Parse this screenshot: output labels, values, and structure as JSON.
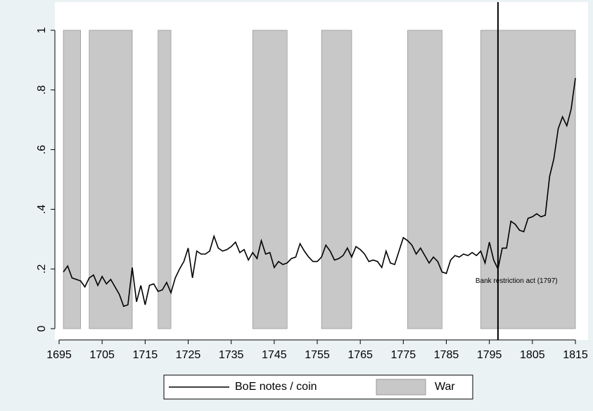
{
  "chart_data": {
    "type": "line",
    "x": [
      1696,
      1697,
      1698,
      1699,
      1700,
      1701,
      1702,
      1703,
      1704,
      1705,
      1706,
      1707,
      1708,
      1709,
      1710,
      1711,
      1712,
      1713,
      1714,
      1715,
      1716,
      1717,
      1718,
      1719,
      1720,
      1721,
      1722,
      1723,
      1724,
      1725,
      1726,
      1727,
      1728,
      1729,
      1730,
      1731,
      1732,
      1733,
      1734,
      1735,
      1736,
      1737,
      1738,
      1739,
      1740,
      1741,
      1742,
      1743,
      1744,
      1745,
      1746,
      1747,
      1748,
      1749,
      1750,
      1751,
      1752,
      1753,
      1754,
      1755,
      1756,
      1757,
      1758,
      1759,
      1760,
      1761,
      1762,
      1763,
      1764,
      1765,
      1766,
      1767,
      1768,
      1769,
      1770,
      1771,
      1772,
      1773,
      1774,
      1775,
      1776,
      1777,
      1778,
      1779,
      1780,
      1781,
      1782,
      1783,
      1784,
      1785,
      1786,
      1787,
      1788,
      1789,
      1790,
      1791,
      1792,
      1793,
      1794,
      1795,
      1796,
      1797,
      1798,
      1799,
      1800,
      1801,
      1802,
      1803,
      1804,
      1805,
      1806,
      1807,
      1808,
      1809,
      1810,
      1811,
      1812,
      1813,
      1814,
      1815
    ],
    "series": [
      {
        "name": "BoE notes / coin",
        "color": "#000000",
        "values": [
          0.19,
          0.21,
          0.17,
          0.165,
          0.16,
          0.14,
          0.17,
          0.18,
          0.145,
          0.175,
          0.15,
          0.165,
          0.14,
          0.115,
          0.075,
          0.08,
          0.205,
          0.09,
          0.145,
          0.08,
          0.145,
          0.15,
          0.125,
          0.13,
          0.155,
          0.12,
          0.17,
          0.2,
          0.225,
          0.27,
          0.17,
          0.26,
          0.25,
          0.25,
          0.26,
          0.31,
          0.27,
          0.26,
          0.265,
          0.275,
          0.29,
          0.255,
          0.265,
          0.23,
          0.255,
          0.235,
          0.295,
          0.25,
          0.255,
          0.205,
          0.225,
          0.215,
          0.22,
          0.235,
          0.24,
          0.285,
          0.26,
          0.24,
          0.225,
          0.225,
          0.24,
          0.28,
          0.26,
          0.23,
          0.235,
          0.245,
          0.27,
          0.24,
          0.275,
          0.265,
          0.25,
          0.225,
          0.23,
          0.225,
          0.205,
          0.26,
          0.22,
          0.215,
          0.26,
          0.305,
          0.295,
          0.28,
          0.25,
          0.27,
          0.245,
          0.22,
          0.24,
          0.225,
          0.19,
          0.185,
          0.23,
          0.245,
          0.24,
          0.25,
          0.245,
          0.255,
          0.245,
          0.26,
          0.22,
          0.29,
          0.23,
          0.2,
          0.27,
          0.27,
          0.36,
          0.35,
          0.33,
          0.325,
          0.37,
          0.375,
          0.385,
          0.375,
          0.38,
          0.51,
          0.57,
          0.67,
          0.71,
          0.68,
          0.735,
          0.84
        ]
      }
    ],
    "war": {
      "name": "War",
      "color": "#c8c8c8",
      "top": 1,
      "periods": [
        {
          "start": 1696,
          "end": 1700
        },
        {
          "start": 1702,
          "end": 1712
        },
        {
          "start": 1718,
          "end": 1721
        },
        {
          "start": 1740,
          "end": 1748
        },
        {
          "start": 1756,
          "end": 1763
        },
        {
          "start": 1776,
          "end": 1784
        },
        {
          "start": 1793,
          "end": 1815
        }
      ]
    },
    "vline": {
      "x": 1797,
      "label": "Bank restriction act (1797)",
      "label_y": 0.16
    },
    "xlim": [
      1695,
      1815
    ],
    "xticks": [
      1695,
      1705,
      1715,
      1725,
      1735,
      1745,
      1755,
      1765,
      1775,
      1785,
      1795,
      1805,
      1815
    ],
    "ylim": [
      0,
      1
    ],
    "yticks": [
      0,
      {
        "value": 0.2,
        "label": ".2"
      },
      {
        "value": 0.4,
        "label": ".4"
      },
      {
        "value": 0.6,
        "label": ".6"
      },
      {
        "value": 0.8,
        "label": ".8"
      },
      1
    ],
    "legend": "bottom"
  }
}
